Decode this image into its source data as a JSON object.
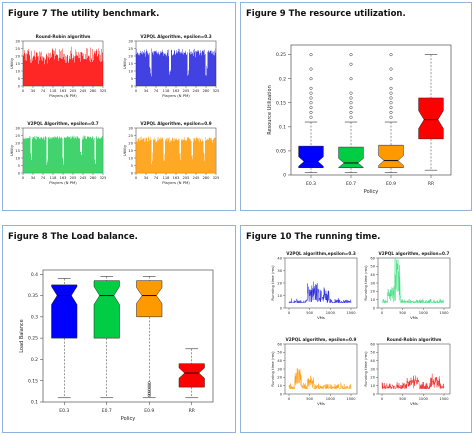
{
  "figure7": {
    "title": "Figure 7  The utility benchmark.",
    "chart_data": [
      {
        "type": "bar",
        "title": "Round-Robin algorithm",
        "xlabel": "Players (N PM)",
        "ylabel": "Utility",
        "color": "#ff0000",
        "ylim": [
          0,
          30
        ],
        "yticks": [
          "0",
          "5",
          "10",
          "15",
          "20",
          "25",
          "30"
        ],
        "xticks": [
          "0",
          "34",
          "74",
          "118",
          "163",
          "205",
          "245",
          "280",
          "325"
        ],
        "n": 160,
        "level": 22,
        "spread": 8,
        "dips": [],
        "seed": 11
      },
      {
        "type": "bar",
        "title": "V2PQL Algorithm, epsilon=0.3",
        "xlabel": "Players (N PM)",
        "ylabel": "Utility",
        "color": "#2222dd",
        "ylim": [
          0,
          30
        ],
        "yticks": [
          "0",
          "5",
          "10",
          "15",
          "20",
          "25",
          "30"
        ],
        "xticks": [
          "0",
          "34",
          "74",
          "118",
          "163",
          "205",
          "245",
          "280",
          "325"
        ],
        "n": 160,
        "level": 23,
        "spread": 4,
        "dips": [
          0.18,
          0.42,
          0.65,
          0.88
        ],
        "seed": 23
      },
      {
        "type": "bar",
        "title": "V2PQL Algorithm, epsilon=0.7",
        "xlabel": "Players (N PM)",
        "ylabel": "Utility",
        "color": "#22cc55",
        "ylim": [
          0,
          30
        ],
        "yticks": [
          "0",
          "5",
          "10",
          "15",
          "20",
          "25",
          "30"
        ],
        "xticks": [
          "0",
          "34",
          "74",
          "118",
          "163",
          "205",
          "245",
          "280",
          "325"
        ],
        "n": 160,
        "level": 24,
        "spread": 2,
        "dips": [
          0.1,
          0.3,
          0.5,
          0.72,
          0.9
        ],
        "seed": 37
      },
      {
        "type": "bar",
        "title": "V2PQL Algorithm, epsilon=0.9",
        "xlabel": "Players (N PM)",
        "ylabel": "Utility",
        "color": "#ff9900",
        "ylim": [
          0,
          30
        ],
        "yticks": [
          "0",
          "5",
          "10",
          "15",
          "20",
          "25",
          "30"
        ],
        "xticks": [
          "0",
          "34",
          "74",
          "118",
          "163",
          "205",
          "245",
          "280",
          "325"
        ],
        "n": 160,
        "level": 23,
        "spread": 3,
        "dips": [
          0.2,
          0.35,
          0.55,
          0.7,
          0.85
        ],
        "seed": 53
      }
    ]
  },
  "figure9": {
    "title": "Figure 9  The resource utilization.",
    "chart_data": {
      "type": "boxplot",
      "xlabel": "Policy",
      "ylabel": "Resource Utilization",
      "ylim": [
        0,
        0.27
      ],
      "yticks": [
        0,
        0.05,
        0.1,
        0.15,
        0.2,
        0.25
      ],
      "categories": [
        "E0.3",
        "E0.7",
        "E0.9",
        "RR"
      ],
      "colors": [
        "#0000ff",
        "#00cc44",
        "#ff9900",
        "#ff0000"
      ],
      "boxes": [
        {
          "min": 0.005,
          "q1": 0.015,
          "median": 0.028,
          "q3": 0.06,
          "max": 0.11,
          "outliers": [
            0.12,
            0.13,
            0.14,
            0.15,
            0.16,
            0.17,
            0.18,
            0.2,
            0.22,
            0.25
          ]
        },
        {
          "min": 0.005,
          "q1": 0.015,
          "median": 0.025,
          "q3": 0.058,
          "max": 0.11,
          "outliers": [
            0.12,
            0.13,
            0.14,
            0.15,
            0.16,
            0.17,
            0.2,
            0.23,
            0.25
          ]
        },
        {
          "min": 0.005,
          "q1": 0.015,
          "median": 0.03,
          "q3": 0.062,
          "max": 0.11,
          "outliers": [
            0.12,
            0.13,
            0.14,
            0.15,
            0.16,
            0.17,
            0.18,
            0.2,
            0.22,
            0.25
          ]
        },
        {
          "min": 0.01,
          "q1": 0.075,
          "median": 0.115,
          "q3": 0.16,
          "max": 0.25,
          "outliers": []
        }
      ]
    }
  },
  "figure8": {
    "title": "Figure 8  The Load balance.",
    "chart_data": {
      "type": "boxplot",
      "xlabel": "Policy",
      "ylabel": "Load Balance",
      "ylim": [
        0.1,
        0.41
      ],
      "yticks": [
        0.1,
        0.15,
        0.2,
        0.25,
        0.3,
        0.35,
        0.4
      ],
      "categories": [
        "E0.3",
        "E0.7",
        "E0.9",
        "RR"
      ],
      "colors": [
        "#0000ff",
        "#00cc44",
        "#ff9900",
        "#ff0000"
      ],
      "boxes": [
        {
          "min": 0.11,
          "q1": 0.25,
          "median": 0.35,
          "q3": 0.375,
          "max": 0.39,
          "outliers": []
        },
        {
          "min": 0.11,
          "q1": 0.25,
          "median": 0.35,
          "q3": 0.385,
          "max": 0.395,
          "outliers": []
        },
        {
          "min": 0.11,
          "q1": 0.3,
          "median": 0.35,
          "q3": 0.385,
          "max": 0.395,
          "outliers": [
            0.115,
            0.12,
            0.125,
            0.13,
            0.135,
            0.14,
            0.145
          ]
        },
        {
          "min": 0.11,
          "q1": 0.135,
          "median": 0.168,
          "q3": 0.19,
          "max": 0.225,
          "outliers": []
        }
      ]
    }
  },
  "figure10": {
    "title": "Figure 10  The running time.",
    "chart_data": [
      {
        "type": "line",
        "title": "V2PQL algorithm,epsilon=0.3",
        "xlabel": "VMs",
        "ylabel": "Running time (ms)",
        "color": "#2222dd",
        "ylim": [
          0,
          40
        ],
        "yticks": [
          "0",
          "10",
          "20",
          "30",
          "40"
        ],
        "xticks": [
          "0",
          "500",
          "1000",
          "1500"
        ],
        "n": 300,
        "base": 4,
        "noise": 4,
        "spikes": [
          [
            0.38,
            0.08,
            16
          ],
          [
            0.55,
            0.1,
            10
          ]
        ],
        "seed": 7
      },
      {
        "type": "line",
        "title": "V2PQL algorithm, epsilon=0.7",
        "xlabel": "VMs",
        "ylabel": "Running time (ms)",
        "color": "#33dd77",
        "ylim": [
          0,
          60
        ],
        "yticks": [
          "0",
          "10",
          "20",
          "30",
          "40",
          "50",
          "60"
        ],
        "xticks": [
          "0",
          "500",
          "1000",
          "1500"
        ],
        "n": 300,
        "base": 6,
        "noise": 6,
        "spikes": [
          [
            0.25,
            0.05,
            55
          ],
          [
            0.15,
            0.06,
            18
          ]
        ],
        "seed": 19
      },
      {
        "type": "line",
        "title": "V2PQL algorithm, epsilon=0.9",
        "xlabel": "VMs",
        "ylabel": "Running time (ms)",
        "color": "#ff9900",
        "ylim": [
          0,
          60
        ],
        "yticks": [
          "0",
          "10",
          "20",
          "30",
          "40",
          "50",
          "60"
        ],
        "xticks": [
          "0",
          "500",
          "1000",
          "1500"
        ],
        "n": 300,
        "base": 6,
        "noise": 8,
        "spikes": [
          [
            0.15,
            0.06,
            22
          ],
          [
            0.35,
            0.05,
            12
          ]
        ],
        "seed": 29
      },
      {
        "type": "line",
        "title": "Round-Robin algorithm",
        "xlabel": "VMs",
        "ylabel": "Running time (ms)",
        "color": "#ee2222",
        "ylim": [
          0,
          60
        ],
        "yticks": [
          "0",
          "10",
          "20",
          "30",
          "40",
          "50",
          "60"
        ],
        "xticks": [
          "0",
          "500",
          "1000",
          "1500"
        ],
        "n": 300,
        "base": 6,
        "noise": 10,
        "spikes": [
          [
            0.5,
            0.1,
            10
          ],
          [
            0.85,
            0.08,
            12
          ]
        ],
        "seed": 41
      }
    ]
  }
}
